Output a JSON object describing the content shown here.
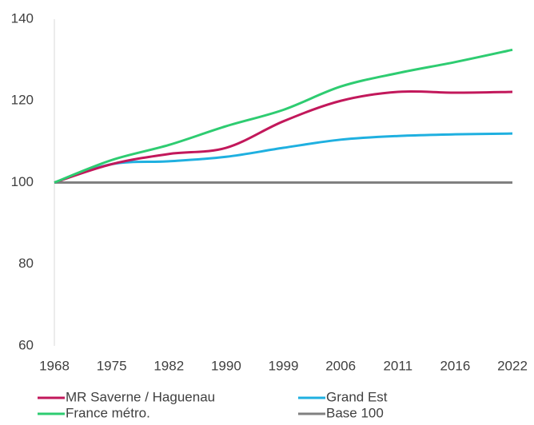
{
  "chart_data": {
    "type": "line",
    "categories": [
      "1968",
      "1975",
      "1982",
      "1990",
      "1999",
      "2006",
      "2011",
      "2016",
      "2022"
    ],
    "series": [
      {
        "name": "MR Saverne / Haguenau",
        "color": "#c2185b",
        "values": [
          100,
          104.5,
          107,
          108.5,
          115,
          120,
          122.2,
          122,
          122.2
        ]
      },
      {
        "name": "Grand Est",
        "color": "#1fb0e0",
        "values": [
          100,
          104.5,
          105.2,
          106.3,
          108.5,
          110.5,
          111.4,
          111.8,
          112
        ]
      },
      {
        "name": "France métro.",
        "color": "#2ecc71",
        "values": [
          100,
          105.5,
          109.2,
          113.8,
          117.8,
          123.5,
          126.8,
          129.5,
          132.5
        ]
      },
      {
        "name": "Base 100",
        "color": "#808080",
        "values": [
          100,
          100,
          100,
          100,
          100,
          100,
          100,
          100,
          100
        ]
      }
    ],
    "ylim": [
      60,
      140
    ],
    "yticks": [
      60,
      80,
      100,
      120,
      140
    ],
    "grid": false,
    "legend": "bottom"
  }
}
